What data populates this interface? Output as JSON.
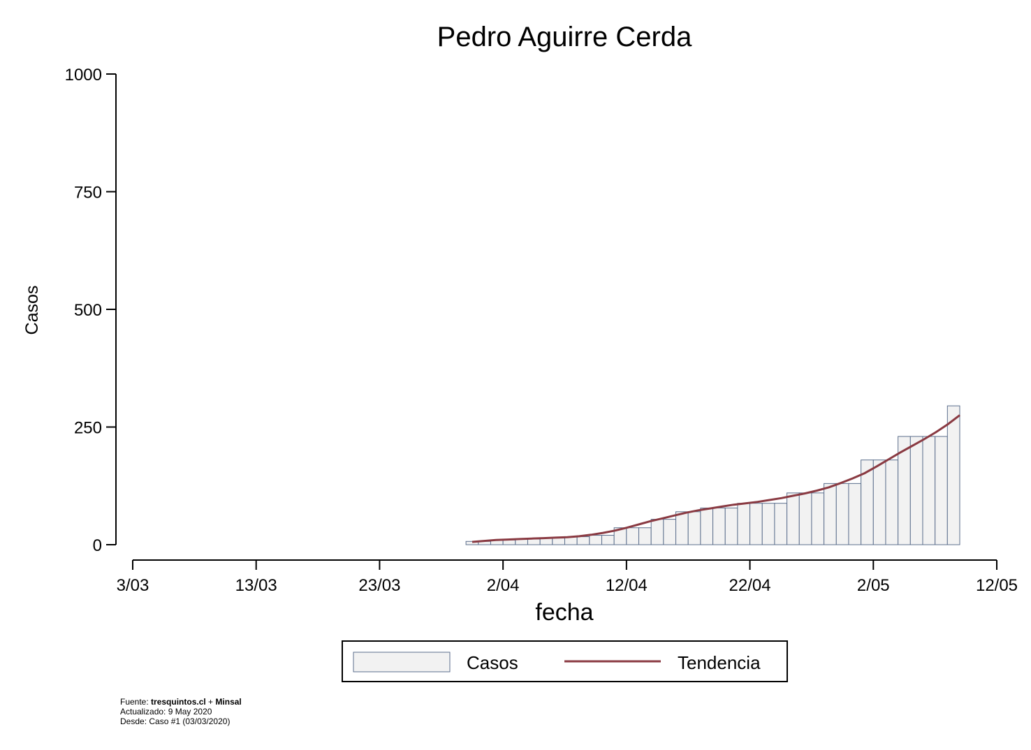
{
  "chart_data": {
    "type": "bar",
    "title": "Pedro Aguirre Cerda",
    "xlabel": "fecha",
    "ylabel": "Casos",
    "ylim": [
      0,
      1000
    ],
    "yticks": [
      0,
      250,
      500,
      750,
      1000
    ],
    "xlim": [
      "2020-03-03",
      "2020-05-12"
    ],
    "xtick_labels": [
      "3/03",
      "13/03",
      "23/03",
      "2/04",
      "12/04",
      "22/04",
      "2/05",
      "12/05"
    ],
    "start_date": "2020-03-30",
    "series": [
      {
        "name": "Casos",
        "type": "bar",
        "values": [
          7,
          7,
          10,
          10,
          12,
          12,
          14,
          14,
          17,
          17,
          20,
          20,
          36,
          36,
          36,
          54,
          54,
          70,
          70,
          78,
          78,
          78,
          88,
          88,
          88,
          88,
          110,
          110,
          110,
          130,
          130,
          130,
          180,
          180,
          180,
          230,
          230,
          230,
          230,
          295
        ]
      },
      {
        "name": "Tendencia",
        "type": "line",
        "values": [
          6,
          8,
          10,
          11,
          12,
          13,
          14,
          15,
          16,
          18,
          21,
          25,
          30,
          36,
          43,
          50,
          56,
          62,
          68,
          73,
          77,
          81,
          85,
          88,
          91,
          95,
          99,
          104,
          109,
          115,
          122,
          131,
          141,
          152,
          166,
          181,
          196,
          210,
          224,
          239,
          256,
          275
        ]
      }
    ],
    "colors": {
      "bar_fill": "#f2f2f2",
      "bar_edge": "#5b6e8c",
      "trend": "#8a3a42"
    },
    "legend_position": "bottom"
  },
  "footer": {
    "line1_prefix": "Fuente: ",
    "line1_source1": "tresquintos.cl",
    "line1_plus": " + ",
    "line1_source2": "Minsal",
    "line2": "Actualizado: 9 May 2020",
    "line3": "Desde: Caso #1  (03/03/2020)"
  }
}
